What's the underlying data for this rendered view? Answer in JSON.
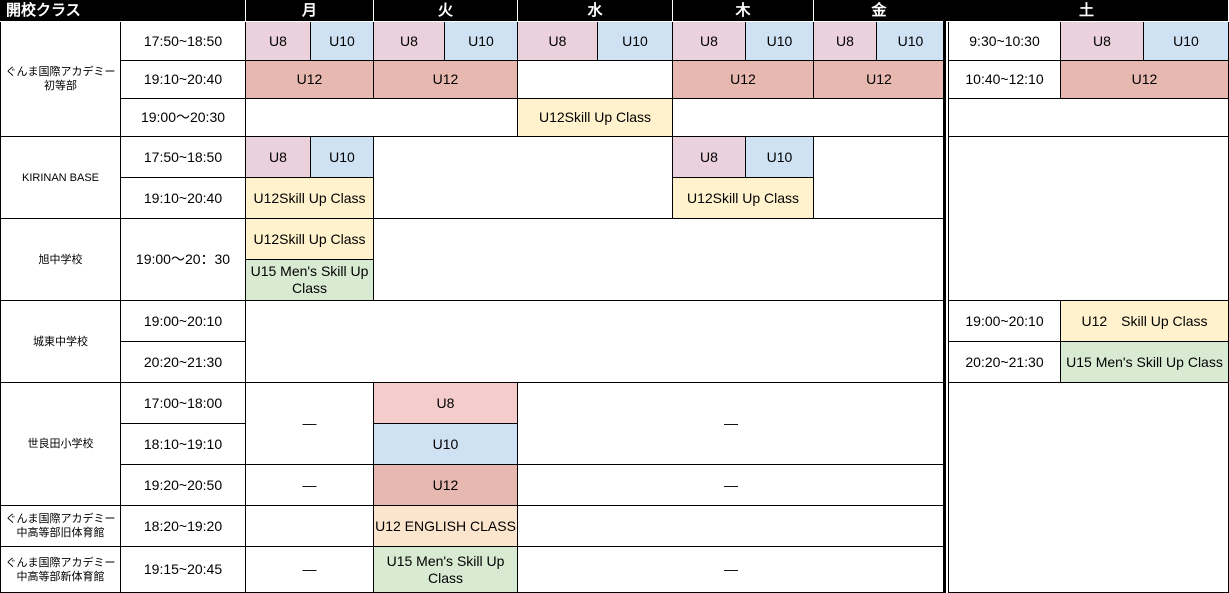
{
  "colors": {
    "u8": "#ead1dc",
    "u10": "#cfe2f3",
    "u12": "#e6b8af",
    "skill": "#fff2cc",
    "men": "#d9ead3",
    "sera_u8": "#f4cccc",
    "english": "#fce5cd"
  },
  "header": {
    "title": "開校クラス",
    "days": {
      "mon": "月",
      "tue": "火",
      "wed": "水",
      "thu": "木",
      "fri": "金",
      "sat": "土"
    }
  },
  "locations": {
    "gunma_primary": "ぐんま国際アカデミー\n初等部",
    "kirinan": "KIRINAN BASE",
    "asahi": "旭中学校",
    "joto": "城東中学校",
    "serada": "世良田小学校",
    "gunma_old_gym": "ぐんま国際アカデミー\n中高等部旧体育館",
    "gunma_new_gym": "ぐんま国際アカデミー\n中高等部新体育館"
  },
  "times": {
    "t1750": "17:50~18:50",
    "t1910": "19:10~20:40",
    "t1900w": "19:00〜20:30",
    "t1900a": "19:00〜20：30",
    "t1900j": "19:00~20:10",
    "t2020": "20:20~21:30",
    "t1700": "17:00~18:00",
    "t1810": "18:10~19:10",
    "t1920": "19:20~20:50",
    "t1820": "18:20~19:20",
    "t1915": "19:15~20:45",
    "sat1": "9:30~10:30",
    "sat2": "10:40~12:10"
  },
  "classes": {
    "u8": "U8",
    "u10": "U10",
    "u12": "U12",
    "skill": "U12Skill Up Class",
    "skill_sp": "U12　Skill Up Class",
    "men": "U15 Men's Skill Up Class",
    "english": "U12 ENGLISH CLASS",
    "dash": "—"
  }
}
